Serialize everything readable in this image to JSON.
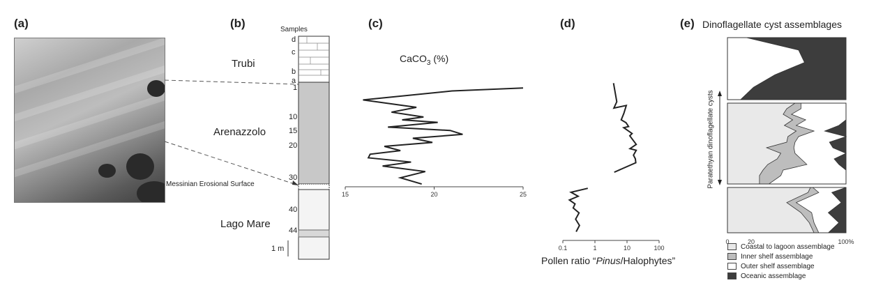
{
  "panels": {
    "a": "(a)",
    "b": "(b)",
    "c": "(c)",
    "d": "(d)",
    "e": "(e)"
  },
  "column": {
    "samples_header": "Samples",
    "sample_letters": [
      "d",
      "c",
      "b",
      "a"
    ],
    "depth_ticks": [
      "1",
      "10",
      "15",
      "20",
      "30",
      "40",
      "44"
    ],
    "scale_label": "1 m",
    "units": [
      "Trubi",
      "Arenazzolo",
      "Lago Mare"
    ],
    "surface_label": "Messinian Erosional Surface"
  },
  "caco3": {
    "title_prefix": "CaCO",
    "title_sub": "3",
    "title_suffix": " (%)"
  },
  "pollen": {
    "xlabel_before": "Pollen ratio “",
    "xlabel_italic": "Pinus",
    "xlabel_after": "/Halophytes”"
  },
  "dino": {
    "title": "Dinoflagellate cyst assemblages",
    "side_label": "Paratethyan dinoflagellate cysts",
    "legend": [
      "Coastal to lagoon assemblage",
      "Inner shelf assemblage",
      "Outer shelf assemblage",
      "Oceanic assemblage"
    ],
    "colors": {
      "coastal": "#e9e9e9",
      "inner": "#bdbdbd",
      "outer": "#ffffff",
      "oceanic": "#3d3d3d"
    }
  },
  "chart_data": [
    {
      "type": "line",
      "name": "c",
      "xlim": [
        15,
        25
      ],
      "x_ticks": [
        15,
        20,
        25
      ],
      "ylim": [
        0.5,
        32
      ],
      "x": [
        25,
        21,
        16,
        19,
        17.6,
        19.4,
        18.2,
        20.2,
        17.4,
        20.9,
        21.6,
        18.8,
        19.9,
        17.2,
        18.1,
        16.4,
        16.3,
        18.7,
        17.1,
        19.5,
        18.1,
        19.3
      ],
      "y": [
        1.8,
        2.6,
        5.0,
        7.0,
        8.3,
        9.6,
        10.5,
        11.4,
        13.1,
        14.3,
        15.7,
        17.1,
        18.6,
        20.0,
        21.3,
        22.4,
        23.5,
        24.8,
        26.0,
        27.7,
        29.6,
        31.6
      ]
    },
    {
      "type": "line",
      "name": "d",
      "x_scale": "log",
      "xlim": [
        0.1,
        100
      ],
      "x_ticks": [
        0.1,
        1,
        10,
        100
      ],
      "x_tick_labels": [
        "0.1",
        "1",
        "10",
        "100"
      ],
      "segments": [
        {
          "x": [
            3.8,
            4.8,
            3.9,
            9.5,
            8.0,
            6.6,
            9.3,
            11.2,
            7.9,
            14.4,
            12.2,
            19.4,
            12.4,
            19.4,
            15.9,
            18.2,
            18.8,
            4.0
          ],
          "y": [
            0.5,
            5.5,
            7.2,
            6.5,
            8.6,
            10.5,
            11.5,
            12.9,
            13.3,
            15.4,
            16.2,
            19.3,
            20.7,
            21.2,
            22.7,
            23.8,
            25.0,
            27.9
          ]
        },
        {
          "x": [
            0.6,
            0.18,
            0.3,
            0.16,
            0.24,
            0.21,
            0.32,
            0.25,
            0.33,
            0.26
          ],
          "y": [
            33.0,
            34.3,
            35.6,
            36.8,
            38.1,
            39.4,
            40.6,
            41.8,
            43.0,
            44.2
          ]
        }
      ]
    },
    {
      "type": "area",
      "name": "e",
      "stacked": true,
      "x_unit": "%",
      "xlim": [
        0,
        100
      ],
      "x_ticks": [
        0,
        20,
        100
      ],
      "x_tick_labels": [
        "0",
        "20",
        "100%"
      ],
      "series": [
        {
          "name": "Coastal to lagoon assemblage",
          "sections": [
            {
              "depth": [
                0,
                1,
                2,
                3,
                4,
                5
              ],
              "cumulative": [
                0,
                0,
                0,
                0,
                0,
                0
              ]
            },
            {
              "depth": [
                1,
                3,
                5,
                7,
                9,
                11,
                13,
                15,
                17,
                19,
                21,
                23,
                25,
                27,
                30
              ],
              "cumulative": [
                57,
                50,
                47,
                55,
                48,
                58,
                51,
                50,
                33,
                45,
                42,
                34,
                30,
                27,
                27
              ]
            },
            {
              "depth": [
                35,
                36,
                38,
                40,
                42,
                44
              ],
              "cumulative": [
                70,
                68,
                50,
                62,
                69,
                73
              ]
            }
          ]
        },
        {
          "name": "Inner shelf assemblage",
          "sections": [
            {
              "depth": [
                0,
                1,
                2,
                3,
                4,
                5
              ],
              "cumulative": [
                0,
                0,
                0,
                0,
                0,
                0
              ]
            },
            {
              "depth": [
                1,
                3,
                5,
                7,
                9,
                11,
                13,
                15,
                17,
                19,
                21,
                23,
                25,
                27,
                30
              ],
              "cumulative": [
                62,
                62,
                54,
                66,
                58,
                73,
                60,
                57,
                56,
                57,
                62,
                67,
                47,
                45,
                35
              ]
            },
            {
              "depth": [
                35,
                36,
                38,
                40,
                42,
                44
              ],
              "cumulative": [
                72,
                77,
                58,
                71,
                73,
                77
              ]
            }
          ]
        },
        {
          "name": "Outer shelf assemblage",
          "sections": [
            {
              "depth": [
                0,
                1,
                2,
                3,
                4,
                5
              ],
              "cumulative": [
                16,
                60,
                65,
                40,
                22,
                11
              ]
            },
            {
              "depth": [
                1,
                3,
                5,
                7,
                9,
                11,
                13,
                15,
                17,
                19,
                21,
                23,
                25,
                27,
                30
              ],
              "cumulative": [
                100,
                100,
                100,
                100,
                94,
                82,
                100,
                86,
                89,
                100,
                90,
                94,
                100,
                100,
                100
              ]
            },
            {
              "depth": [
                35,
                36,
                38,
                40,
                42,
                44
              ],
              "cumulative": [
                100,
                88,
                96,
                85,
                94,
                85
              ]
            }
          ]
        },
        {
          "name": "Oceanic assemblage",
          "sections": [
            {
              "depth": [
                0,
                1,
                2,
                3,
                4,
                5
              ],
              "cumulative": [
                100,
                100,
                100,
                100,
                100,
                100
              ]
            },
            {
              "depth": [
                1,
                3,
                5,
                7,
                9,
                11,
                13,
                15,
                17,
                19,
                21,
                23,
                25,
                27,
                30
              ],
              "cumulative": [
                100,
                100,
                100,
                100,
                100,
                100,
                100,
                100,
                100,
                100,
                100,
                100,
                100,
                100,
                100
              ]
            },
            {
              "depth": [
                35,
                36,
                38,
                40,
                42,
                44
              ],
              "cumulative": [
                100,
                100,
                100,
                100,
                100,
                100
              ]
            }
          ]
        }
      ]
    }
  ]
}
